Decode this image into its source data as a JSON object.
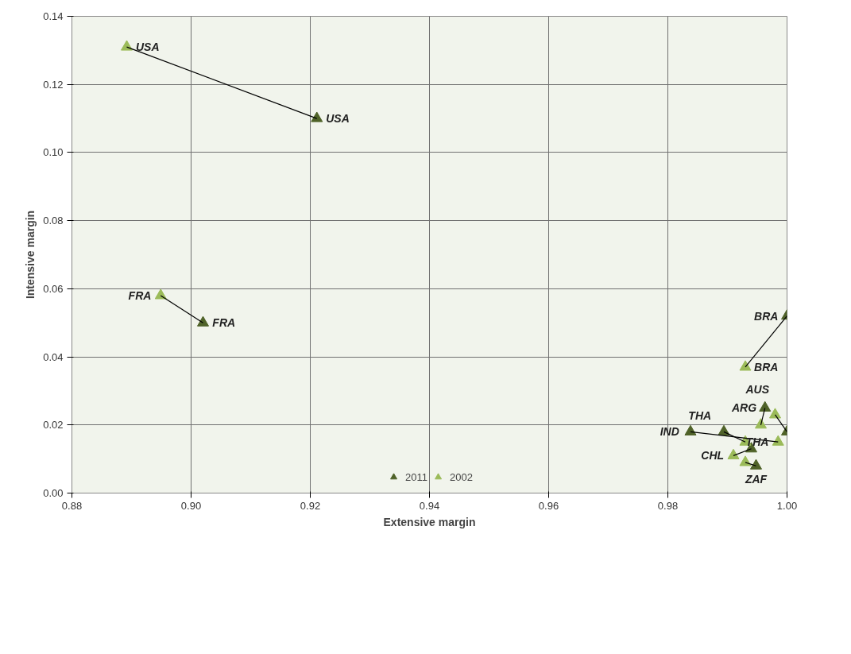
{
  "chart_data": {
    "type": "scatter",
    "xlabel": "Extensive margin",
    "ylabel": "Intensive margin",
    "xlim": [
      0.88,
      1.0
    ],
    "ylim": [
      0,
      0.14
    ],
    "xticks": [
      {
        "value": 0.88,
        "label": "0.88"
      },
      {
        "value": 0.9,
        "label": "0.90"
      },
      {
        "value": 0.92,
        "label": "0.92"
      },
      {
        "value": 0.94,
        "label": "0.94"
      },
      {
        "value": 0.96,
        "label": "0.96"
      },
      {
        "value": 0.98,
        "label": "0.98"
      },
      {
        "value": 1.0,
        "label": "1.00"
      }
    ],
    "yticks": [
      {
        "value": 0,
        "label": "0.00"
      },
      {
        "value": 0.02,
        "label": "0.02"
      },
      {
        "value": 0.04,
        "label": "0.04"
      },
      {
        "value": 0.06,
        "label": "0.06"
      },
      {
        "value": 0.08,
        "label": "0.08"
      },
      {
        "value": 0.1,
        "label": "0.10"
      },
      {
        "value": 0.12,
        "label": "0.12"
      },
      {
        "value": 0.14,
        "label": "0.14"
      }
    ],
    "grid": true,
    "legend": "bottom",
    "marker": "triangle",
    "series": [
      {
        "type": "line",
        "marker": "none",
        "color": "#000000",
        "x": [
          0.8892,
          0.9211
        ],
        "values": [
          0.131,
          0.11
        ]
      },
      {
        "type": "line",
        "marker": "none",
        "color": "#000000",
        "x": [
          0.8949,
          0.902
        ],
        "values": [
          0.058,
          0.05
        ]
      },
      {
        "type": "line",
        "marker": "none",
        "color": "#000000",
        "x": [
          0.993,
          1.0
        ],
        "values": [
          0.037,
          0.052
        ]
      },
      {
        "type": "line",
        "marker": "none",
        "color": "#000000",
        "x": [
          0.9956,
          0.9963
        ],
        "values": [
          0.02,
          0.025
        ]
      },
      {
        "type": "line",
        "marker": "none",
        "color": "#000000",
        "x": [
          0.998,
          1.0
        ],
        "values": [
          0.023,
          0.018
        ]
      },
      {
        "type": "line",
        "marker": "none",
        "color": "#000000",
        "x": [
          0.9838,
          0.9985
        ],
        "values": [
          0.018,
          0.015
        ]
      },
      {
        "type": "line",
        "marker": "none",
        "color": "#000000",
        "x": [
          0.9894,
          0.993
        ],
        "values": [
          0.018,
          0.015
        ]
      },
      {
        "type": "line",
        "marker": "none",
        "color": "#000000",
        "x": [
          0.991,
          0.994
        ],
        "values": [
          0.011,
          0.013
        ]
      },
      {
        "type": "line",
        "marker": "none",
        "color": "#000000",
        "x": [
          0.993,
          0.9948
        ],
        "values": [
          0.009,
          0.008
        ]
      },
      {
        "name": "2011",
        "color": "#4f6228",
        "x": [
          0.9211,
          0.902,
          1.0,
          0.9963,
          1.0,
          0.9838,
          0.9894,
          0.994,
          0.9948
        ],
        "values": [
          0.11,
          0.05,
          0.052,
          0.025,
          0.018,
          0.018,
          0.018,
          0.013,
          0.008
        ]
      },
      {
        "name": "2002",
        "color": "#9bbb59",
        "x": [
          0.8892,
          0.8949,
          0.993,
          0.9956,
          0.998,
          0.9985,
          0.993,
          0.991,
          0.993
        ],
        "values": [
          0.131,
          0.058,
          0.037,
          0.02,
          0.023,
          0.015,
          0.015,
          0.011,
          0.009
        ]
      }
    ],
    "annotations": [
      {
        "text": "USA",
        "x": 0.8892,
        "y": 0.131
      },
      {
        "text": "USA",
        "x": 0.9211,
        "y": 0.11
      },
      {
        "text": "FRA",
        "x": 0.8949,
        "y": 0.058
      },
      {
        "text": "FRA",
        "x": 0.902,
        "y": 0.05
      },
      {
        "text": "BRA",
        "x": 1.0,
        "y": 0.052
      },
      {
        "text": "BRA",
        "x": 0.993,
        "y": 0.037
      },
      {
        "text": "ARG",
        "x": 0.9963,
        "y": 0.025
      },
      {
        "text": "AUS",
        "x": 0.998,
        "y": 0.023
      },
      {
        "text": "THA",
        "x": 0.9894,
        "y": 0.018
      },
      {
        "text": "IND",
        "x": 0.9838,
        "y": 0.018
      },
      {
        "text": "CHL",
        "x": 0.991,
        "y": 0.011
      },
      {
        "text": "THA",
        "x": 0.9985,
        "y": 0.015
      },
      {
        "text": "ZAF",
        "x": 0.9948,
        "y": 0.008
      }
    ]
  }
}
